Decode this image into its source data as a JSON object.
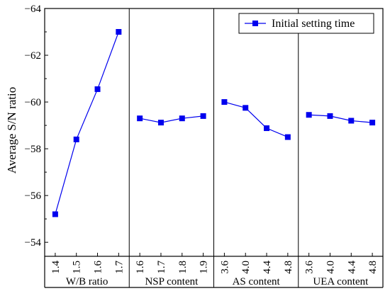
{
  "chart_data": {
    "type": "line",
    "ylabel": "Average S/N ratio",
    "ylim": [
      -64,
      -53.4
    ],
    "y_ticks": [
      -64,
      -62,
      -60,
      -58,
      -56,
      -54
    ],
    "y_tick_labels": [
      "−64",
      "−62",
      "−60",
      "−58",
      "−56",
      "−54"
    ],
    "legend": {
      "label": "Initial setting time",
      "placement": "top-right"
    },
    "series_color": "#0000ee",
    "groups": [
      {
        "label": "W/B ratio",
        "x": [
          "1.4",
          "1.5",
          "1.6",
          "1.7"
        ],
        "values": [
          -55.2,
          -58.4,
          -60.55,
          -63.0
        ]
      },
      {
        "label": "NSP content",
        "x": [
          "1.6",
          "1.7",
          "1.8",
          "1.9"
        ],
        "values": [
          -59.3,
          -59.12,
          -59.3,
          -59.4
        ]
      },
      {
        "label": "AS content",
        "x": [
          "3.6",
          "4.0",
          "4.4",
          "4.8"
        ],
        "values": [
          -60.0,
          -59.75,
          -58.88,
          -58.5
        ]
      },
      {
        "label": "UEA content",
        "x": [
          "3.6",
          "4.0",
          "4.4",
          "4.8"
        ],
        "values": [
          -59.45,
          -59.4,
          -59.2,
          -59.12
        ]
      }
    ]
  }
}
